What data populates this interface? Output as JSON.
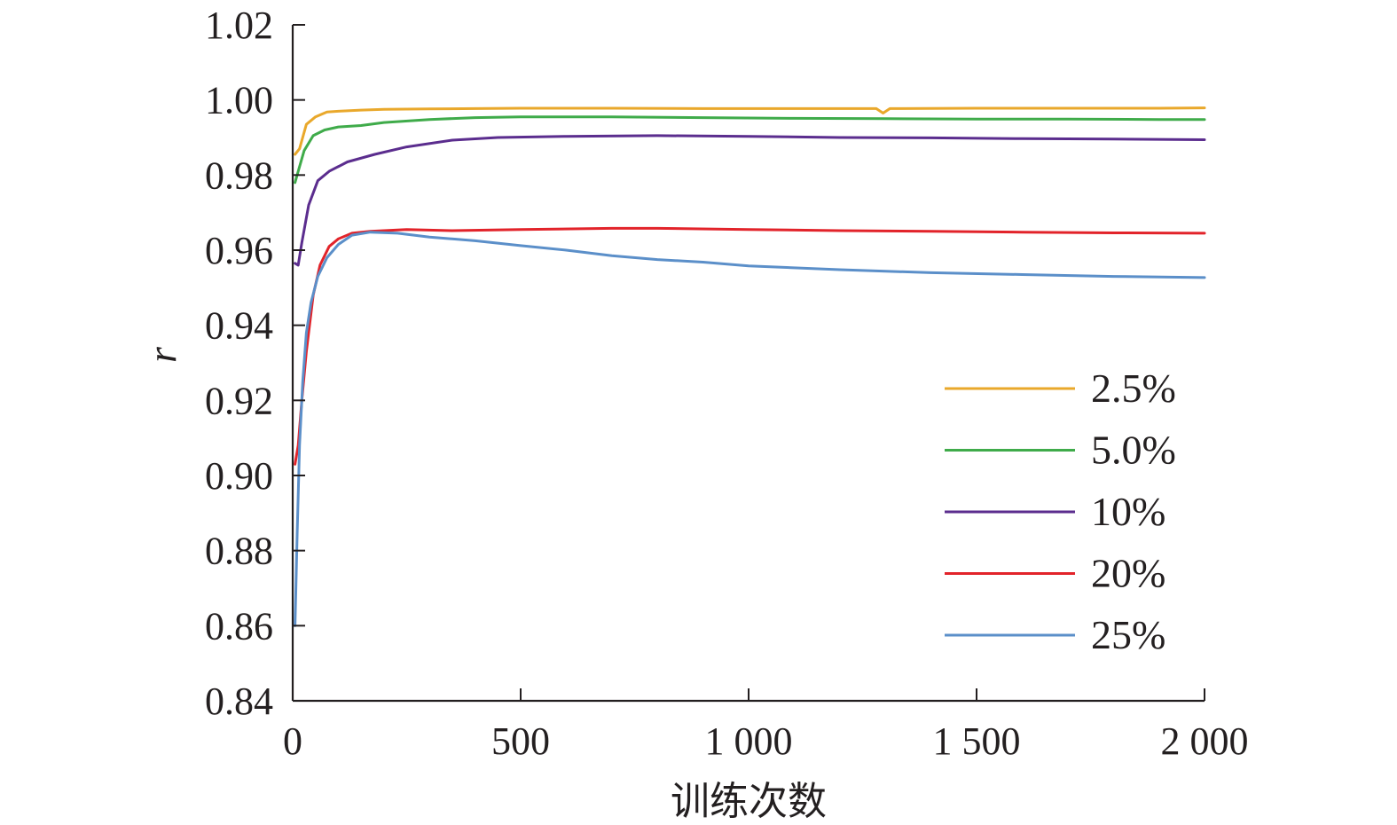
{
  "chart_data": {
    "type": "line",
    "title": "",
    "xlabel": "训练次数",
    "ylabel": "r",
    "xlim": [
      0,
      2000
    ],
    "ylim": [
      0.84,
      1.02
    ],
    "grid": false,
    "legend_position": "right",
    "x_ticks": [
      {
        "value": 0,
        "label": "0"
      },
      {
        "value": 500,
        "label": "500"
      },
      {
        "value": 1000,
        "label": "1 000"
      },
      {
        "value": 1500,
        "label": "1 500"
      },
      {
        "value": 2000,
        "label": "2 000"
      }
    ],
    "y_ticks": [
      {
        "value": 0.84,
        "label": "0.84"
      },
      {
        "value": 0.86,
        "label": "0.86"
      },
      {
        "value": 0.88,
        "label": "0.88"
      },
      {
        "value": 0.9,
        "label": "0.90"
      },
      {
        "value": 0.92,
        "label": "0.92"
      },
      {
        "value": 0.94,
        "label": "0.94"
      },
      {
        "value": 0.96,
        "label": "0.96"
      },
      {
        "value": 0.98,
        "label": "0.98"
      },
      {
        "value": 1.0,
        "label": "1.00"
      },
      {
        "value": 1.02,
        "label": "1.02"
      }
    ],
    "series": [
      {
        "name": "2.5%",
        "color": "#e9a82b",
        "x": [
          5,
          15,
          30,
          50,
          75,
          100,
          150,
          200,
          300,
          400,
          500,
          700,
          900,
          1100,
          1280,
          1295,
          1310,
          1500,
          1700,
          1900,
          2000
        ],
        "y": [
          0.9855,
          0.987,
          0.9935,
          0.9955,
          0.9968,
          0.997,
          0.9973,
          0.9975,
          0.9976,
          0.9977,
          0.9978,
          0.9978,
          0.9977,
          0.9977,
          0.9977,
          0.9965,
          0.9977,
          0.9978,
          0.9978,
          0.9978,
          0.9979
        ]
      },
      {
        "name": "5.0%",
        "color": "#3fab4a",
        "x": [
          5,
          12,
          25,
          45,
          70,
          100,
          150,
          200,
          300,
          400,
          500,
          700,
          900,
          1100,
          1300,
          1500,
          1700,
          1900,
          2000
        ],
        "y": [
          0.978,
          0.981,
          0.9865,
          0.9905,
          0.992,
          0.9928,
          0.9932,
          0.994,
          0.9948,
          0.9953,
          0.9955,
          0.9955,
          0.9953,
          0.9951,
          0.995,
          0.9949,
          0.9949,
          0.9948,
          0.9948
        ]
      },
      {
        "name": "10%",
        "color": "#5b2d8e",
        "x": [
          5,
          12,
          20,
          35,
          55,
          80,
          120,
          180,
          250,
          350,
          450,
          600,
          800,
          1000,
          1200,
          1400,
          1600,
          1800,
          2000
        ],
        "y": [
          0.9565,
          0.956,
          0.962,
          0.972,
          0.9785,
          0.981,
          0.9835,
          0.9855,
          0.9875,
          0.9893,
          0.99,
          0.9903,
          0.9905,
          0.9903,
          0.99,
          0.9899,
          0.9897,
          0.9896,
          0.9894
        ]
      },
      {
        "name": "20%",
        "color": "#e2232a",
        "x": [
          5,
          12,
          20,
          30,
          45,
          60,
          80,
          100,
          130,
          170,
          250,
          350,
          500,
          700,
          800,
          1000,
          1200,
          1400,
          1600,
          1800,
          2000
        ],
        "y": [
          0.903,
          0.908,
          0.92,
          0.933,
          0.948,
          0.956,
          0.961,
          0.963,
          0.9645,
          0.965,
          0.9655,
          0.9652,
          0.9655,
          0.9658,
          0.9658,
          0.9655,
          0.9652,
          0.965,
          0.9648,
          0.9646,
          0.9645
        ]
      },
      {
        "name": "25%",
        "color": "#5b8fc9",
        "x": [
          5,
          10,
          15,
          22,
          30,
          40,
          55,
          75,
          100,
          130,
          170,
          230,
          300,
          400,
          500,
          600,
          700,
          800,
          900,
          1000,
          1200,
          1400,
          1600,
          1800,
          2000
        ],
        "y": [
          0.86,
          0.885,
          0.908,
          0.925,
          0.938,
          0.946,
          0.953,
          0.958,
          0.9615,
          0.964,
          0.9648,
          0.9645,
          0.9635,
          0.9625,
          0.9612,
          0.96,
          0.9585,
          0.9575,
          0.9568,
          0.9558,
          0.9548,
          0.954,
          0.9535,
          0.953,
          0.9527
        ]
      }
    ]
  }
}
